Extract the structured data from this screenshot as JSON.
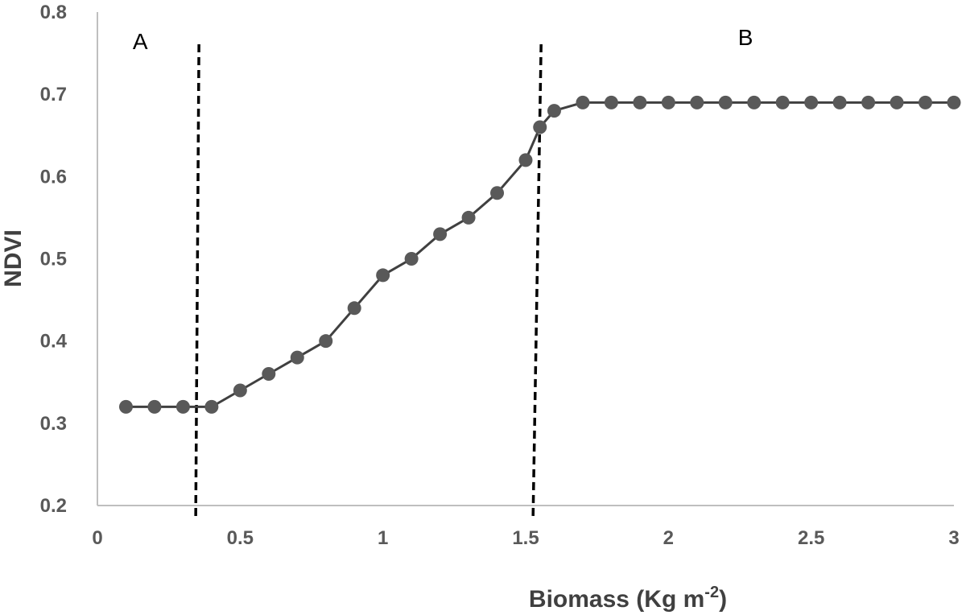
{
  "chart_data": {
    "type": "line",
    "title": "",
    "xlabel": "Biomass (Kg m",
    "xlabel_superscript": "-2",
    "xlabel_suffix": ")",
    "ylabel": "NDVI",
    "xlim": [
      0,
      3
    ],
    "ylim": [
      0.2,
      0.8
    ],
    "xticks": [
      "0",
      "0.5",
      "1",
      "1.5",
      "2",
      "2.5",
      "3"
    ],
    "yticks": [
      "0.2",
      "0.3",
      "0.4",
      "0.5",
      "0.6",
      "0.7",
      "0.8"
    ],
    "grid": false,
    "legend": "none",
    "series": [
      {
        "color": "#595959",
        "marker": "circle",
        "x": [
          0.1,
          0.2,
          0.3,
          0.4,
          0.5,
          0.6,
          0.7,
          0.8,
          0.9,
          1.0,
          1.1,
          1.2,
          1.3,
          1.4,
          1.5,
          1.55,
          1.6,
          1.7,
          1.8,
          1.9,
          2.0,
          2.1,
          2.2,
          2.3,
          2.4,
          2.5,
          2.6,
          2.7,
          2.8,
          2.9,
          3.0
        ],
        "y": [
          0.32,
          0.32,
          0.32,
          0.32,
          0.34,
          0.36,
          0.38,
          0.4,
          0.44,
          0.48,
          0.5,
          0.53,
          0.55,
          0.58,
          0.62,
          0.66,
          0.68,
          0.69,
          0.69,
          0.69,
          0.69,
          0.69,
          0.69,
          0.69,
          0.69,
          0.69,
          0.69,
          0.69,
          0.69,
          0.69,
          0.69
        ]
      }
    ],
    "thresholds": [
      {
        "x": 0.35,
        "style": "dashed"
      },
      {
        "x": 1.54,
        "style": "dashed"
      }
    ],
    "annotations": [
      {
        "text": "A",
        "x": 0.15,
        "y": 0.755
      },
      {
        "text": "B",
        "x": 2.27,
        "y": 0.76
      }
    ]
  }
}
